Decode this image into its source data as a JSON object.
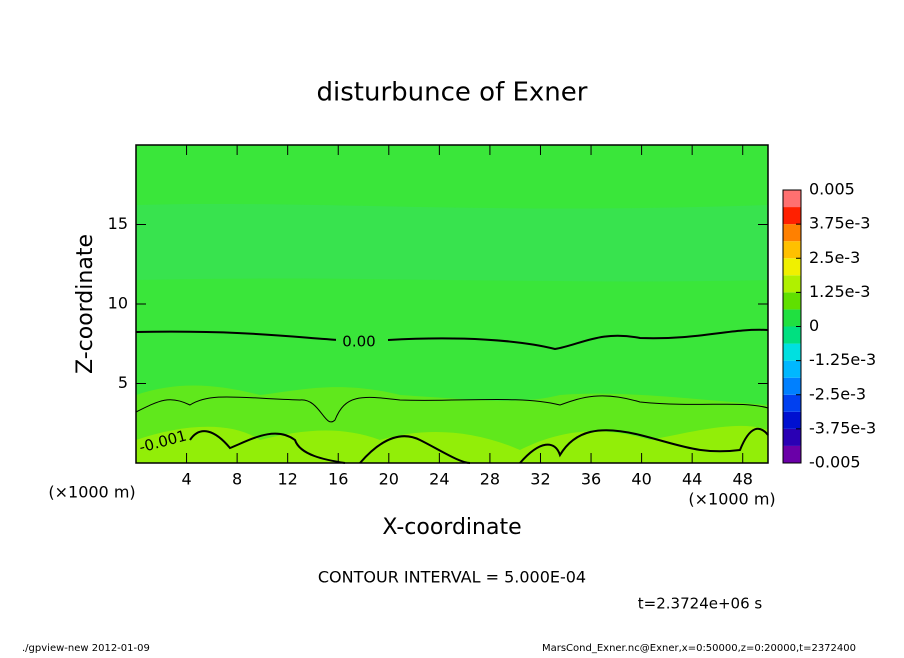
{
  "chart_data": {
    "type": "contour",
    "title": "disturbunce of Exner",
    "x_label": "X-coordinate",
    "y_label": "Z-coordinate",
    "x_unit": "(×1000 m)",
    "y_unit": "(×1000 m)",
    "xlim": [
      0,
      50
    ],
    "ylim": [
      0,
      20
    ],
    "xticks": [
      4,
      8,
      12,
      16,
      20,
      24,
      28,
      32,
      36,
      40,
      44,
      48
    ],
    "yticks": [
      5,
      10,
      15
    ],
    "contour_labels": [
      "0.00",
      "-0.001"
    ],
    "contour_interval": "CONTOUR INTERVAL = 5.000E-04",
    "time_label": "t=2.3724e+06 s",
    "footer_left": "./gpview-new  2012-01-09",
    "footer_right": "MarsCond_Exner.nc@Exner,x=0:50000,z=0:20000,t=2372400",
    "colorbar": {
      "clim": [
        -0.005,
        0.005
      ],
      "ticks": [
        -0.005,
        {
          "value": -0.00375,
          "label": "-3.75e-3"
        },
        {
          "value": -0.0025,
          "label": "-2.5e-3"
        },
        {
          "value": -0.00125,
          "label": "-1.25e-3"
        },
        0,
        {
          "value": 0.00125,
          "label": "1.25e-3"
        },
        {
          "value": 0.0025,
          "label": "2.5e-3"
        },
        {
          "value": 0.00375,
          "label": "3.75e-3"
        },
        0.005
      ],
      "colors": [
        "#6a00a8",
        "#2a00b4",
        "#0010d0",
        "#0040f0",
        "#0080ff",
        "#00b8ff",
        "#00e0e0",
        "#00e080",
        "#20e040",
        "#60e000",
        "#b0f000",
        "#f0f000",
        "#ffc000",
        "#ff8000",
        "#ff2000",
        "#ff7070"
      ]
    }
  }
}
